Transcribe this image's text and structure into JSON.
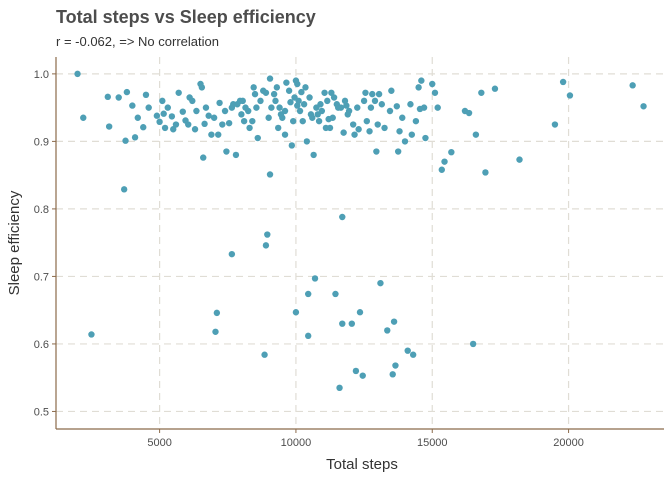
{
  "chart_data": {
    "type": "scatter",
    "title": "Total steps vs Sleep efficiency",
    "subtitle": "r = -0.062, => No correlation",
    "xlabel": "Total steps",
    "ylabel": "Sleep efficiency",
    "xlim": [
      1200,
      23500
    ],
    "ylim": [
      0.474,
      1.025
    ],
    "xticks": [
      5000,
      10000,
      15000,
      20000
    ],
    "yticks": [
      0.5,
      0.6,
      0.7,
      0.8,
      0.9,
      1.0
    ],
    "xtick_labels": [
      "5000",
      "10000",
      "15000",
      "20000"
    ],
    "ytick_labels": [
      "0.5",
      "0.6",
      "0.7",
      "0.8",
      "0.9",
      "1.0"
    ],
    "grid": true,
    "legend": "none",
    "point_color": "#4e9fb5",
    "points": [
      [
        1990,
        1.0
      ],
      [
        2200,
        0.935
      ],
      [
        2500,
        0.614
      ],
      [
        3100,
        0.966
      ],
      [
        3150,
        0.922
      ],
      [
        3500,
        0.965
      ],
      [
        3700,
        0.829
      ],
      [
        3750,
        0.901
      ],
      [
        3800,
        0.973
      ],
      [
        4000,
        0.953
      ],
      [
        4100,
        0.906
      ],
      [
        4200,
        0.935
      ],
      [
        4400,
        0.921
      ],
      [
        4500,
        0.969
      ],
      [
        4600,
        0.95
      ],
      [
        4900,
        0.938
      ],
      [
        5000,
        0.929
      ],
      [
        5100,
        0.96
      ],
      [
        5150,
        0.941
      ],
      [
        5200,
        0.92
      ],
      [
        5300,
        0.95
      ],
      [
        5450,
        0.937
      ],
      [
        5500,
        0.918
      ],
      [
        5600,
        0.925
      ],
      [
        5700,
        0.972
      ],
      [
        5850,
        0.944
      ],
      [
        5950,
        0.931
      ],
      [
        6050,
        0.925
      ],
      [
        6100,
        0.965
      ],
      [
        6200,
        0.96
      ],
      [
        6300,
        0.918
      ],
      [
        6350,
        0.945
      ],
      [
        6500,
        0.985
      ],
      [
        6550,
        0.98
      ],
      [
        6600,
        0.876
      ],
      [
        6650,
        0.926
      ],
      [
        6700,
        0.95
      ],
      [
        6800,
        0.938
      ],
      [
        6900,
        0.91
      ],
      [
        7000,
        0.935
      ],
      [
        7050,
        0.618
      ],
      [
        7100,
        0.646
      ],
      [
        7150,
        0.91
      ],
      [
        7200,
        0.957
      ],
      [
        7300,
        0.925
      ],
      [
        7400,
        0.945
      ],
      [
        7450,
        0.885
      ],
      [
        7550,
        0.927
      ],
      [
        7650,
        0.95
      ],
      [
        7650,
        0.733
      ],
      [
        7700,
        0.955
      ],
      [
        7800,
        0.88
      ],
      [
        7850,
        0.955
      ],
      [
        7950,
        0.96
      ],
      [
        8000,
        0.94
      ],
      [
        8050,
        0.96
      ],
      [
        8100,
        0.93
      ],
      [
        8150,
        0.95
      ],
      [
        8250,
        0.945
      ],
      [
        8300,
        0.92
      ],
      [
        8400,
        0.93
      ],
      [
        8450,
        0.98
      ],
      [
        8500,
        0.97
      ],
      [
        8550,
        0.95
      ],
      [
        8600,
        0.905
      ],
      [
        8700,
        0.96
      ],
      [
        8800,
        0.975
      ],
      [
        8850,
        0.584
      ],
      [
        8900,
        0.746
      ],
      [
        8900,
        0.972
      ],
      [
        8950,
        0.762
      ],
      [
        9000,
        0.935
      ],
      [
        9050,
        0.851
      ],
      [
        9050,
        0.993
      ],
      [
        9100,
        0.95
      ],
      [
        9200,
        0.97
      ],
      [
        9250,
        0.96
      ],
      [
        9300,
        0.98
      ],
      [
        9350,
        0.92
      ],
      [
        9400,
        0.95
      ],
      [
        9450,
        0.94
      ],
      [
        9500,
        0.935
      ],
      [
        9600,
        0.945
      ],
      [
        9600,
        0.91
      ],
      [
        9650,
        0.987
      ],
      [
        9750,
        0.975
      ],
      [
        9800,
        0.958
      ],
      [
        9850,
        0.894
      ],
      [
        9900,
        0.93
      ],
      [
        9950,
        0.965
      ],
      [
        10000,
        0.647
      ],
      [
        10000,
        0.99
      ],
      [
        10050,
        0.953
      ],
      [
        10050,
        0.985
      ],
      [
        10100,
        0.96
      ],
      [
        10150,
        0.945
      ],
      [
        10200,
        0.973
      ],
      [
        10250,
        0.93
      ],
      [
        10300,
        0.955
      ],
      [
        10350,
        0.98
      ],
      [
        10400,
        0.9
      ],
      [
        10450,
        0.612
      ],
      [
        10450,
        0.674
      ],
      [
        10500,
        0.965
      ],
      [
        10550,
        0.94
      ],
      [
        10600,
        0.935
      ],
      [
        10650,
        0.88
      ],
      [
        10700,
        0.697
      ],
      [
        10750,
        0.95
      ],
      [
        10800,
        0.94
      ],
      [
        10850,
        0.93
      ],
      [
        10900,
        0.955
      ],
      [
        10950,
        0.945
      ],
      [
        11050,
        0.972
      ],
      [
        11100,
        0.92
      ],
      [
        11150,
        0.96
      ],
      [
        11200,
        0.933
      ],
      [
        11250,
        0.92
      ],
      [
        11300,
        0.972
      ],
      [
        11350,
        0.935
      ],
      [
        11400,
        0.965
      ],
      [
        11450,
        0.674
      ],
      [
        11500,
        0.955
      ],
      [
        11550,
        0.95
      ],
      [
        11600,
        0.535
      ],
      [
        11650,
        0.95
      ],
      [
        11700,
        0.63
      ],
      [
        11700,
        0.788
      ],
      [
        11750,
        0.913
      ],
      [
        11800,
        0.96
      ],
      [
        11850,
        0.953
      ],
      [
        11900,
        0.94
      ],
      [
        11950,
        0.945
      ],
      [
        12050,
        0.63
      ],
      [
        12100,
        0.925
      ],
      [
        12150,
        0.91
      ],
      [
        12200,
        0.56
      ],
      [
        12250,
        0.95
      ],
      [
        12300,
        0.918
      ],
      [
        12350,
        0.647
      ],
      [
        12450,
        0.553
      ],
      [
        12500,
        0.96
      ],
      [
        12550,
        0.972
      ],
      [
        12600,
        0.93
      ],
      [
        12700,
        0.915
      ],
      [
        12750,
        0.95
      ],
      [
        12800,
        0.97
      ],
      [
        12900,
        0.96
      ],
      [
        12950,
        0.885
      ],
      [
        13000,
        0.925
      ],
      [
        13050,
        0.97
      ],
      [
        13100,
        0.69
      ],
      [
        13150,
        0.955
      ],
      [
        13250,
        0.92
      ],
      [
        13350,
        0.62
      ],
      [
        13450,
        0.945
      ],
      [
        13500,
        0.975
      ],
      [
        13550,
        0.555
      ],
      [
        13600,
        0.633
      ],
      [
        13650,
        0.568
      ],
      [
        13700,
        0.952
      ],
      [
        13750,
        0.885
      ],
      [
        13800,
        0.915
      ],
      [
        13900,
        0.935
      ],
      [
        14000,
        0.9
      ],
      [
        14100,
        0.59
      ],
      [
        14200,
        0.955
      ],
      [
        14250,
        0.91
      ],
      [
        14300,
        0.584
      ],
      [
        14400,
        0.93
      ],
      [
        14500,
        0.98
      ],
      [
        14550,
        0.948
      ],
      [
        14600,
        0.99
      ],
      [
        14700,
        0.95
      ],
      [
        14750,
        0.905
      ],
      [
        15000,
        0.985
      ],
      [
        15100,
        0.972
      ],
      [
        15200,
        0.95
      ],
      [
        15350,
        0.858
      ],
      [
        15450,
        0.87
      ],
      [
        15700,
        0.884
      ],
      [
        16200,
        0.945
      ],
      [
        16350,
        0.942
      ],
      [
        16500,
        0.6
      ],
      [
        16600,
        0.91
      ],
      [
        16800,
        0.972
      ],
      [
        16950,
        0.854
      ],
      [
        17300,
        0.978
      ],
      [
        18200,
        0.873
      ],
      [
        19500,
        0.925
      ],
      [
        19800,
        0.988
      ],
      [
        20050,
        0.968
      ],
      [
        22350,
        0.983
      ],
      [
        22750,
        0.952
      ]
    ]
  }
}
